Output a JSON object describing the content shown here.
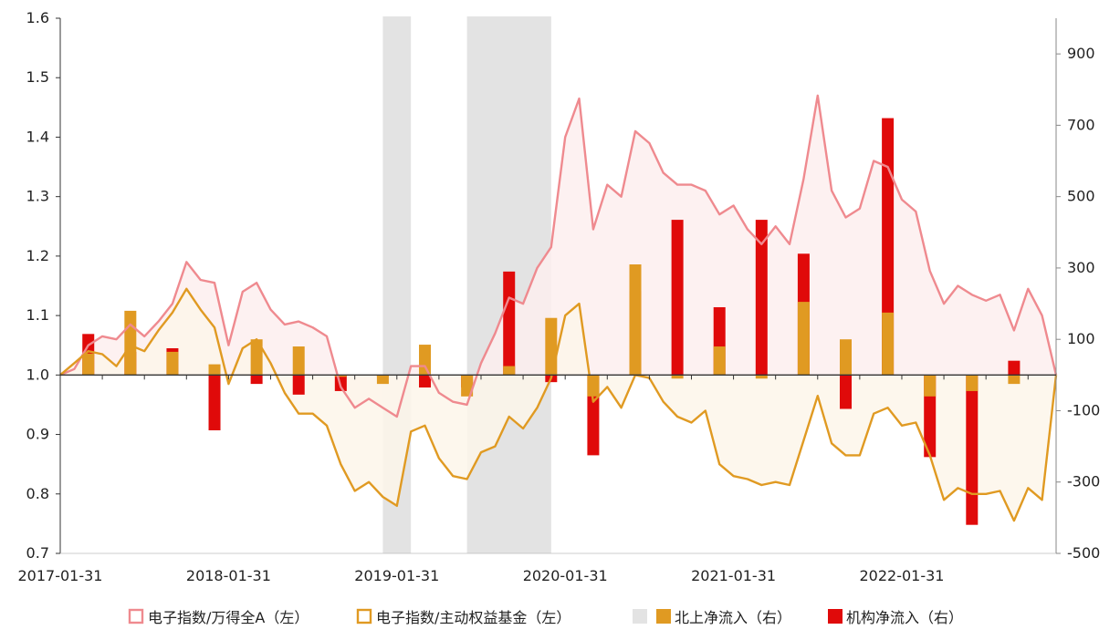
{
  "chart_data": {
    "type": "bar+line",
    "title": "",
    "x_tick_labels": [
      "2017-01-31",
      "2018-01-31",
      "2019-01-31",
      "2020-01-31",
      "2021-01-31",
      "2022-01-31"
    ],
    "left_axis": {
      "range": [
        0.7,
        1.6
      ],
      "ticks": [
        "0.7",
        "0.8",
        "0.9",
        "1.0",
        "1.1",
        "1.2",
        "1.3",
        "1.4",
        "1.5",
        "1.6"
      ]
    },
    "right_axis": {
      "range": [
        -500,
        1000
      ],
      "ticks": [
        "-500",
        "-300",
        "-100",
        "100",
        "300",
        "500",
        "700",
        "900"
      ]
    },
    "legend": [
      {
        "label": "电子指数/万得全A（左）",
        "color": "#ef8a8f",
        "kind": "line-box"
      },
      {
        "label": "电子指数/主动权益基金（左）",
        "color": "#e09a22",
        "kind": "line-box"
      },
      {
        "label": "",
        "color": "#e3e3e3",
        "kind": "box"
      },
      {
        "label": "北上净流入（右）",
        "color": "#e09a22",
        "kind": "box"
      },
      {
        "label": "机构净流入（右）",
        "color": "#e00a0a",
        "kind": "box"
      }
    ],
    "shaded_periods": [
      {
        "from": "2018-12",
        "to": "2019-02"
      },
      {
        "from": "2019-06",
        "to": "2019-12"
      }
    ],
    "line_months": [
      "2017-01",
      "2017-02",
      "2017-03",
      "2017-04",
      "2017-05",
      "2017-06",
      "2017-07",
      "2017-08",
      "2017-09",
      "2017-10",
      "2017-11",
      "2017-12",
      "2018-01",
      "2018-02",
      "2018-03",
      "2018-04",
      "2018-05",
      "2018-06",
      "2018-07",
      "2018-08",
      "2018-09",
      "2018-10",
      "2018-11",
      "2018-12",
      "2019-01",
      "2019-02",
      "2019-03",
      "2019-04",
      "2019-05",
      "2019-06",
      "2019-07",
      "2019-08",
      "2019-09",
      "2019-10",
      "2019-11",
      "2019-12",
      "2020-01",
      "2020-02",
      "2020-03",
      "2020-04",
      "2020-05",
      "2020-06",
      "2020-07",
      "2020-08",
      "2020-09",
      "2020-10",
      "2020-11",
      "2020-12",
      "2021-01",
      "2021-02",
      "2021-03",
      "2021-04",
      "2021-05",
      "2021-06",
      "2021-07",
      "2021-08",
      "2021-09",
      "2021-10",
      "2021-11",
      "2021-12",
      "2022-01",
      "2022-02",
      "2022-03",
      "2022-04",
      "2022-05",
      "2022-06",
      "2022-07",
      "2022-08",
      "2022-09",
      "2022-10",
      "2022-11",
      "2022-12"
    ],
    "series": [
      {
        "name": "电子指数/万得全A（左）",
        "axis": "left",
        "values": [
          1.0,
          1.01,
          1.05,
          1.065,
          1.06,
          1.085,
          1.065,
          1.09,
          1.12,
          1.19,
          1.16,
          1.155,
          1.05,
          1.14,
          1.155,
          1.11,
          1.085,
          1.09,
          1.08,
          1.065,
          0.98,
          0.945,
          0.96,
          0.945,
          0.93,
          1.015,
          1.015,
          0.97,
          0.955,
          0.95,
          1.02,
          1.07,
          1.13,
          1.12,
          1.18,
          1.215,
          1.4,
          1.465,
          1.245,
          1.32,
          1.3,
          1.41,
          1.39,
          1.34,
          1.32,
          1.32,
          1.31,
          1.27,
          1.285,
          1.245,
          1.22,
          1.25,
          1.22,
          1.33,
          1.47,
          1.31,
          1.265,
          1.28,
          1.36,
          1.35,
          1.295,
          1.275,
          1.175,
          1.12,
          1.15,
          1.135,
          1.125,
          1.135,
          1.075,
          1.145,
          1.1,
          1.0
        ]
      },
      {
        "name": "电子指数/主动权益基金（左）",
        "axis": "left",
        "values": [
          1.0,
          1.02,
          1.04,
          1.035,
          1.015,
          1.05,
          1.04,
          1.075,
          1.105,
          1.145,
          1.11,
          1.08,
          0.985,
          1.045,
          1.06,
          1.02,
          0.97,
          0.935,
          0.935,
          0.915,
          0.85,
          0.805,
          0.82,
          0.795,
          0.78,
          0.905,
          0.915,
          0.86,
          0.83,
          0.825,
          0.87,
          0.88,
          0.93,
          0.91,
          0.945,
          0.995,
          1.1,
          1.12,
          0.955,
          0.98,
          0.945,
          1.0,
          0.995,
          0.955,
          0.93,
          0.92,
          0.94,
          0.85,
          0.83,
          0.825,
          0.815,
          0.82,
          0.815,
          0.89,
          0.965,
          0.885,
          0.865,
          0.865,
          0.935,
          0.945,
          0.915,
          0.92,
          0.865,
          0.79,
          0.81,
          0.8,
          0.8,
          0.805,
          0.755,
          0.81,
          0.79,
          1.0
        ]
      }
    ],
    "bar_series": [
      {
        "name": "北上净流入（右）",
        "axis": "right",
        "periods": [
          "2017-03",
          "2017-06",
          "2017-09",
          "2017-12",
          "2018-03",
          "2018-06",
          "2018-09",
          "2018-12",
          "2019-03",
          "2019-06",
          "2019-09",
          "2019-12",
          "2020-03",
          "2020-06",
          "2020-09",
          "2020-12",
          "2021-03",
          "2021-06",
          "2021-09",
          "2021-12",
          "2022-03",
          "2022-06",
          "2022-09"
        ],
        "values": [
          60,
          180,
          65,
          30,
          100,
          80,
          -5,
          -25,
          85,
          -60,
          25,
          160,
          -60,
          310,
          -10,
          80,
          -10,
          205,
          100,
          175,
          -60,
          -45,
          -25
        ]
      },
      {
        "name": "机构净流入（右）",
        "axis": "right",
        "periods": [
          "2017-03",
          "2017-06",
          "2017-09",
          "2017-12",
          "2018-03",
          "2018-06",
          "2018-09",
          "2018-12",
          "2019-03",
          "2019-06",
          "2019-09",
          "2019-12",
          "2020-03",
          "2020-06",
          "2020-09",
          "2020-12",
          "2021-03",
          "2021-06",
          "2021-09",
          "2021-12",
          "2022-03",
          "2022-06",
          "2022-09"
        ],
        "values": [
          115,
          65,
          75,
          -155,
          -25,
          -55,
          -45,
          -5,
          -35,
          -35,
          290,
          -20,
          -225,
          235,
          435,
          190,
          435,
          340,
          -95,
          720,
          -230,
          -420,
          40
        ]
      }
    ],
    "grid": false,
    "legend_placement": "bottom"
  }
}
